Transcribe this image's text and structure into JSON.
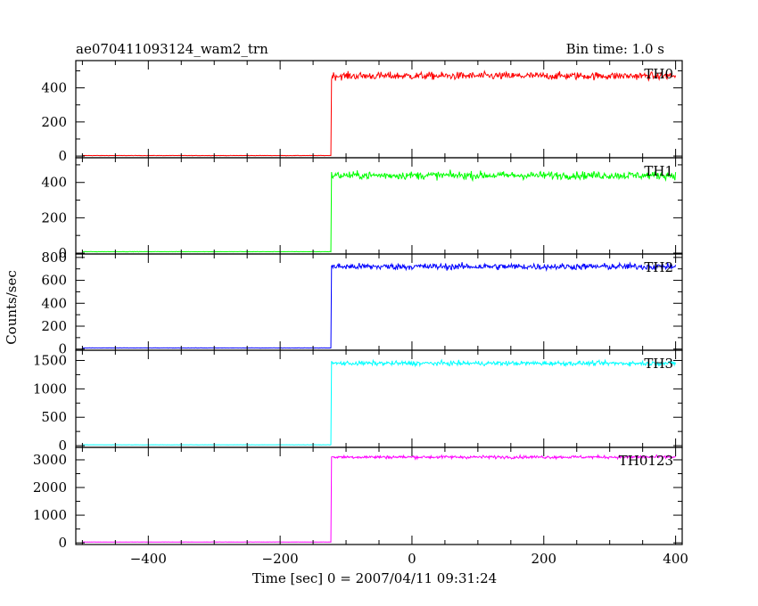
{
  "header": {
    "title": "ae070411093124_wam2_trn",
    "bin_time": "Bin time: 1.0 s"
  },
  "chart_data": {
    "type": "line",
    "title": "ae070411093124_wam2_trn",
    "subtitle": "Bin time: 1.0 s",
    "xlabel": "Time [sec] 0 = 2007/04/11 09:31:24",
    "ylabel": "Counts/sec",
    "xlim": [
      -510,
      410
    ],
    "x_ticks": [
      -400,
      -200,
      0,
      200,
      400
    ],
    "x_tick_labels": [
      "−400",
      "−200",
      "0",
      "200",
      "400"
    ],
    "step_time": -122,
    "grid": false,
    "panels": [
      {
        "name": "TH0",
        "color": "#ff0000",
        "ylim": [
          -10,
          560
        ],
        "yticks": [
          0,
          200,
          400
        ],
        "y_tick_labels": [
          "0",
          "200",
          "400"
        ],
        "pre_level": 3,
        "post_level": 470,
        "noise": 22
      },
      {
        "name": "TH1",
        "color": "#00ff00",
        "ylim": [
          -5,
          540
        ],
        "yticks": [
          0,
          200,
          400
        ],
        "y_tick_labels": [
          "0",
          "200",
          "400"
        ],
        "pre_level": 8,
        "post_level": 440,
        "noise": 22
      },
      {
        "name": "TH2",
        "color": "#0000ff",
        "ylim": [
          -10,
          830
        ],
        "yticks": [
          0,
          200,
          400,
          600,
          800
        ],
        "y_tick_labels": [
          "0",
          "200",
          "400",
          "600",
          "800"
        ],
        "pre_level": 10,
        "post_level": 720,
        "noise": 28
      },
      {
        "name": "TH3",
        "color": "#00ffff",
        "ylim": [
          -30,
          1680
        ],
        "yticks": [
          0,
          500,
          1000,
          1500
        ],
        "y_tick_labels": [
          "0",
          "500",
          "1000",
          "1500"
        ],
        "pre_level": 15,
        "post_level": 1450,
        "noise": 40
      },
      {
        "name": "TH0123",
        "color": "#ff00ff",
        "ylim": [
          -60,
          3450
        ],
        "yticks": [
          0,
          1000,
          2000,
          3000
        ],
        "y_tick_labels": [
          "0",
          "1000",
          "2000",
          "3000"
        ],
        "pre_level": 30,
        "post_level": 3100,
        "noise": 55
      }
    ]
  }
}
